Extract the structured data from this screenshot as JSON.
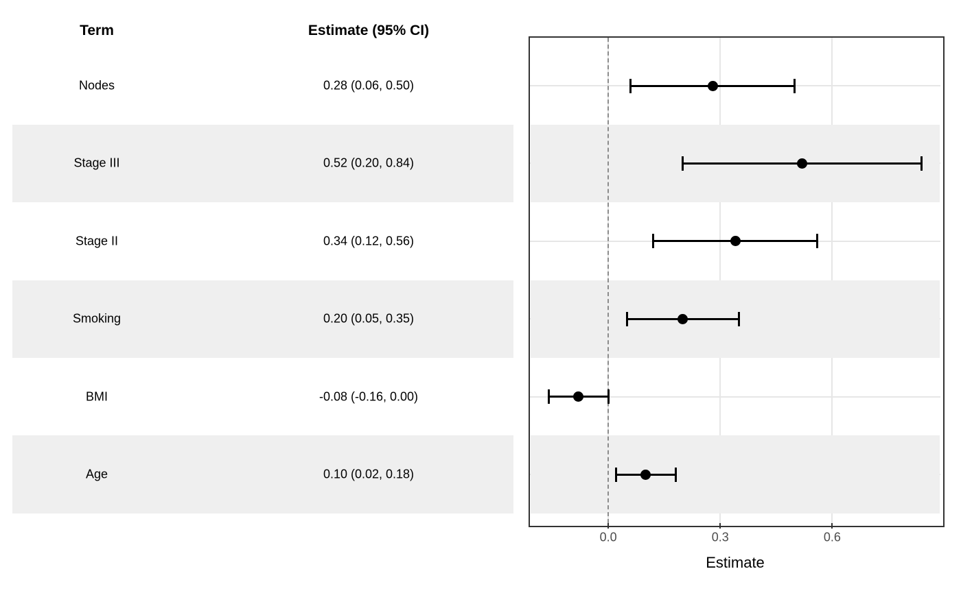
{
  "table": {
    "term_header": "Term",
    "estimate_header": "Estimate (95% CI)",
    "rows": [
      {
        "term": "Nodes",
        "estimate_label": "0.28 (0.06, 0.50)",
        "shaded": false
      },
      {
        "term": "Stage III",
        "estimate_label": "0.52 (0.20, 0.84)",
        "shaded": true
      },
      {
        "term": "Stage II",
        "estimate_label": "0.34 (0.12, 0.56)",
        "shaded": false
      },
      {
        "term": "Smoking",
        "estimate_label": "0.20 (0.05, 0.35)",
        "shaded": true
      },
      {
        "term": "BMI",
        "estimate_label": "-0.08 (-0.16, 0.00)",
        "shaded": false
      },
      {
        "term": "Age",
        "estimate_label": "0.10 (0.02, 0.18)",
        "shaded": true
      }
    ]
  },
  "chart_data": {
    "type": "scatter",
    "subtype": "forest-plot",
    "title": "",
    "xlabel": "Estimate",
    "ylabel": "",
    "categories": [
      "Nodes",
      "Stage III",
      "Stage II",
      "Smoking",
      "BMI",
      "Age"
    ],
    "points": [
      {
        "term": "Nodes",
        "estimate": 0.28,
        "ci_low": 0.06,
        "ci_high": 0.5
      },
      {
        "term": "Stage III",
        "estimate": 0.52,
        "ci_low": 0.2,
        "ci_high": 0.84
      },
      {
        "term": "Stage II",
        "estimate": 0.34,
        "ci_low": 0.12,
        "ci_high": 0.56
      },
      {
        "term": "Smoking",
        "estimate": 0.2,
        "ci_low": 0.05,
        "ci_high": 0.35
      },
      {
        "term": "BMI",
        "estimate": -0.08,
        "ci_low": -0.16,
        "ci_high": 0.0
      },
      {
        "term": "Age",
        "estimate": 0.1,
        "ci_low": 0.02,
        "ci_high": 0.18
      }
    ],
    "x_ticks": [
      0.0,
      0.3,
      0.6
    ],
    "x_tick_labels": [
      "0.0",
      "0.3",
      "0.6"
    ],
    "xlim": [
      -0.21,
      0.89
    ],
    "reference_line_x": 0,
    "grid": true,
    "legend": false,
    "shaded_rows": [
      "Stage III",
      "Smoking",
      "Age"
    ]
  },
  "colors": {
    "band": "#efefef",
    "grid": "#e6e6e6",
    "panel_border": "#333333",
    "reference_line": "#8c8c8c",
    "marker": "#000000",
    "axis_text": "#4d4d4d",
    "text": "#000000"
  }
}
